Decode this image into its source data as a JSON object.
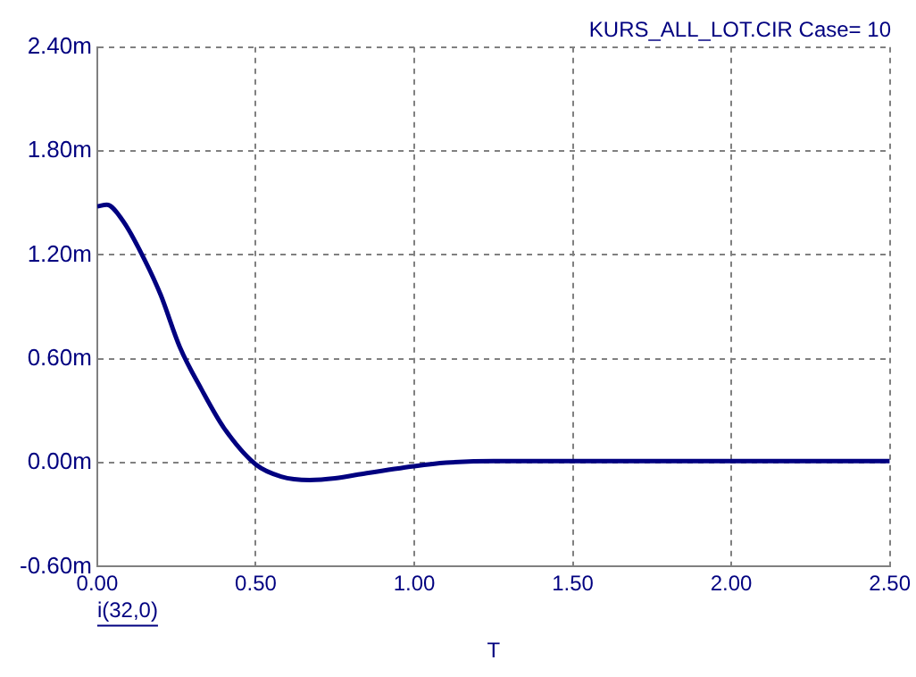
{
  "chart_data": {
    "type": "line",
    "title": "KURS_ALL_LOT.CIR Case= 10",
    "xlabel": "T",
    "annotations": [
      "i(32,0)"
    ],
    "x": [
      0,
      0.03,
      0.08,
      0.15,
      0.2,
      0.26,
      0.33,
      0.4,
      0.5,
      0.58,
      0.67,
      0.75,
      0.85,
      1.0,
      1.1,
      1.25,
      1.5,
      2.0,
      2.5
    ],
    "series": [
      {
        "color": "#000080",
        "values": [
          1.48,
          1.49,
          1.4,
          1.17,
          0.97,
          0.67,
          0.42,
          0.2,
          -0.01,
          -0.08,
          -0.1,
          -0.09,
          -0.06,
          -0.02,
          0.0,
          0.01,
          0.01,
          0.01,
          0.01
        ]
      }
    ],
    "xlim": [
      0,
      2.5
    ],
    "xticks": [
      {
        "value": 0,
        "label": "0.00"
      },
      {
        "value": 0.5,
        "label": "0.50"
      },
      {
        "value": 1,
        "label": "1.00"
      },
      {
        "value": 1.5,
        "label": "1.50"
      },
      {
        "value": 2,
        "label": "2.00"
      },
      {
        "value": 2.5,
        "label": "2.50"
      }
    ],
    "ylim": [
      -0.6,
      2.4
    ],
    "yticks": [
      {
        "value": -0.6,
        "label": "-0.60m"
      },
      {
        "value": 0,
        "label": "0.00m"
      },
      {
        "value": 0.6,
        "label": "0.60m"
      },
      {
        "value": 1.2,
        "label": "1.20m"
      },
      {
        "value": 1.8,
        "label": "1.80m"
      },
      {
        "value": 2.4,
        "label": "2.40m"
      }
    ],
    "grid": true,
    "legend": false,
    "marker": "none",
    "line_style": "solid"
  }
}
